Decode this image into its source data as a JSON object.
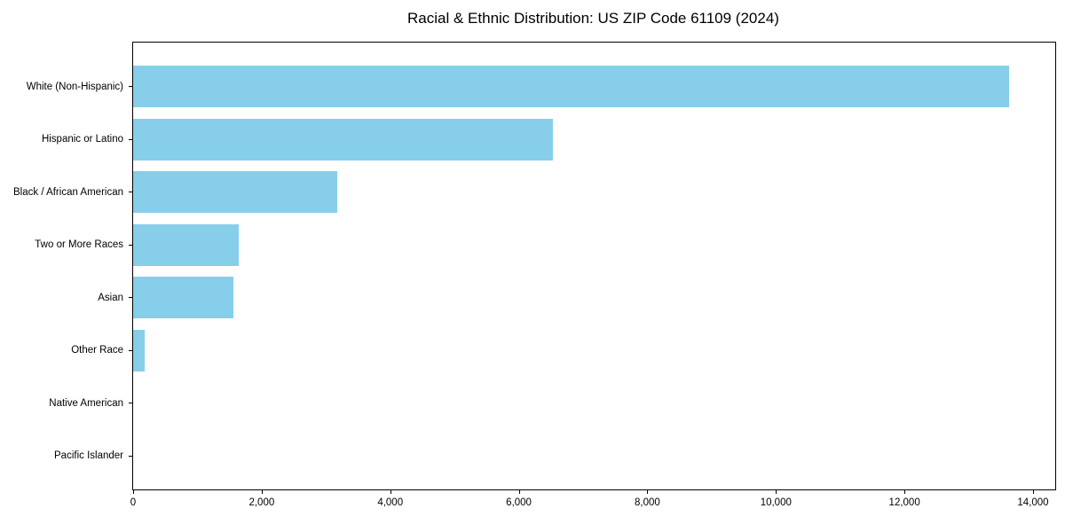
{
  "title": "Racial & Ethnic Distribution: US ZIP Code 61109 (2024)",
  "colors": {
    "bar": "#87CEEB",
    "axis": "#000000",
    "background": "#FFFFFF",
    "text": "#000000"
  },
  "chart_data": {
    "type": "bar",
    "orientation": "horizontal",
    "title": "Racial & Ethnic Distribution: US ZIP Code 61109 (2024)",
    "categories": [
      "White (Non-Hispanic)",
      "Hispanic or Latino",
      "Black / African American",
      "Two or More Races",
      "Asian",
      "Other Race",
      "Native American",
      "Pacific Islander"
    ],
    "values": [
      13630,
      6530,
      3180,
      1640,
      1560,
      185,
      0,
      0
    ],
    "xlabel": "",
    "ylabel": "",
    "xlim": [
      0,
      14345
    ],
    "x_ticks": [
      0,
      2000,
      4000,
      6000,
      8000,
      10000,
      12000,
      14000
    ],
    "x_tick_labels": [
      "0",
      "2,000",
      "4,000",
      "6,000",
      "8,000",
      "10,000",
      "12,000",
      "14,000"
    ],
    "grid": false,
    "legend": null,
    "bar_color": "#87CEEB"
  }
}
